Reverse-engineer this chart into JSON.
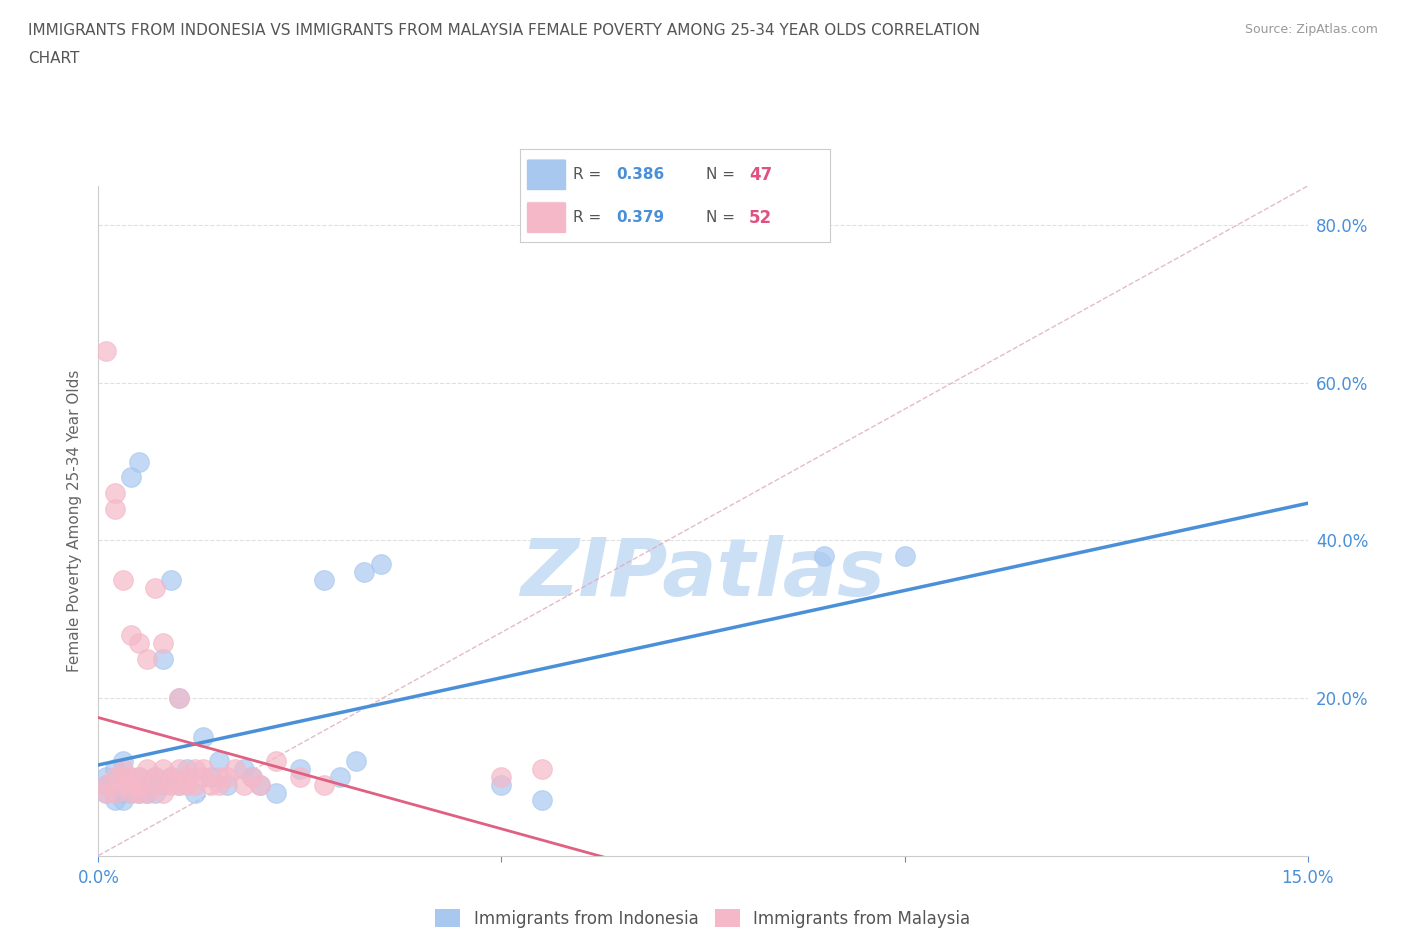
{
  "title_line1": "IMMIGRANTS FROM INDONESIA VS IMMIGRANTS FROM MALAYSIA FEMALE POVERTY AMONG 25-34 YEAR OLDS CORRELATION",
  "title_line2": "CHART",
  "source": "Source: ZipAtlas.com",
  "ylabel": "Female Poverty Among 25-34 Year Olds",
  "xlim": [
    0.0,
    0.15
  ],
  "ylim": [
    0.0,
    0.85
  ],
  "indonesia_color": "#a8c8f0",
  "malaysia_color": "#f5b8c8",
  "indonesia_line_color": "#4a90d9",
  "malaysia_line_color": "#e06080",
  "indonesia_R": 0.386,
  "indonesia_N": 47,
  "malaysia_R": 0.379,
  "malaysia_N": 52,
  "watermark": "ZIPatlas",
  "watermark_color": "#cce0f5",
  "indonesia_scatter_x": [
    0.001,
    0.001,
    0.001,
    0.002,
    0.002,
    0.002,
    0.002,
    0.003,
    0.003,
    0.003,
    0.003,
    0.004,
    0.004,
    0.004,
    0.005,
    0.005,
    0.005,
    0.006,
    0.006,
    0.007,
    0.007,
    0.008,
    0.008,
    0.009,
    0.009,
    0.01,
    0.01,
    0.011,
    0.012,
    0.013,
    0.014,
    0.015,
    0.016,
    0.018,
    0.019,
    0.02,
    0.022,
    0.025,
    0.028,
    0.03,
    0.032,
    0.033,
    0.035,
    0.05,
    0.055,
    0.09,
    0.1
  ],
  "indonesia_scatter_y": [
    0.08,
    0.09,
    0.1,
    0.07,
    0.08,
    0.09,
    0.11,
    0.07,
    0.08,
    0.1,
    0.12,
    0.08,
    0.09,
    0.48,
    0.08,
    0.1,
    0.5,
    0.08,
    0.09,
    0.08,
    0.1,
    0.09,
    0.25,
    0.1,
    0.35,
    0.09,
    0.2,
    0.11,
    0.08,
    0.15,
    0.1,
    0.12,
    0.09,
    0.11,
    0.1,
    0.09,
    0.08,
    0.11,
    0.35,
    0.1,
    0.12,
    0.36,
    0.37,
    0.09,
    0.07,
    0.38,
    0.38
  ],
  "malaysia_scatter_x": [
    0.001,
    0.001,
    0.001,
    0.002,
    0.002,
    0.002,
    0.002,
    0.003,
    0.003,
    0.003,
    0.003,
    0.004,
    0.004,
    0.004,
    0.004,
    0.005,
    0.005,
    0.005,
    0.005,
    0.006,
    0.006,
    0.006,
    0.007,
    0.007,
    0.007,
    0.008,
    0.008,
    0.008,
    0.009,
    0.009,
    0.01,
    0.01,
    0.01,
    0.011,
    0.011,
    0.012,
    0.012,
    0.013,
    0.013,
    0.014,
    0.015,
    0.015,
    0.016,
    0.017,
    0.018,
    0.019,
    0.02,
    0.022,
    0.025,
    0.028,
    0.05,
    0.055
  ],
  "malaysia_scatter_y": [
    0.08,
    0.09,
    0.64,
    0.08,
    0.1,
    0.44,
    0.46,
    0.09,
    0.1,
    0.35,
    0.11,
    0.08,
    0.09,
    0.28,
    0.1,
    0.09,
    0.27,
    0.1,
    0.08,
    0.08,
    0.25,
    0.11,
    0.09,
    0.34,
    0.1,
    0.08,
    0.27,
    0.11,
    0.09,
    0.1,
    0.09,
    0.2,
    0.11,
    0.09,
    0.1,
    0.09,
    0.11,
    0.1,
    0.11,
    0.09,
    0.1,
    0.09,
    0.1,
    0.11,
    0.09,
    0.1,
    0.09,
    0.12,
    0.1,
    0.09,
    0.1,
    0.11
  ],
  "grid_color": "#e0e0e0",
  "title_color": "#555555",
  "axis_label_color": "#666666",
  "tick_color": "#4a90d9",
  "diag_color": "#ddbbcc",
  "legend_box_color": "#cccccc"
}
